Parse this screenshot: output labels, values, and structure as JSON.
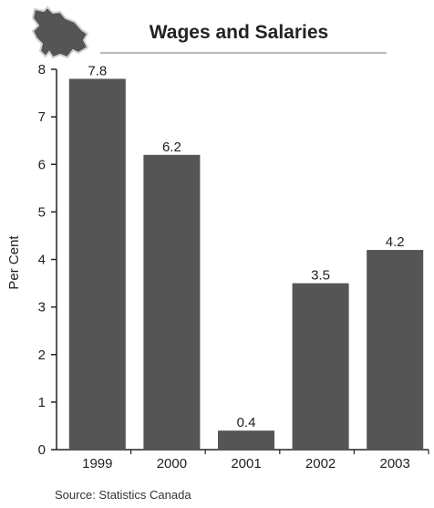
{
  "chart_data": {
    "type": "bar",
    "title": "Wages and Salaries",
    "xlabel": "",
    "ylabel": "Per Cent",
    "categories": [
      "1999",
      "2000",
      "2001",
      "2002",
      "2003"
    ],
    "values": [
      7.8,
      6.2,
      0.4,
      3.5,
      4.2
    ],
    "value_labels": [
      "7.8",
      "6.2",
      "0.4",
      "3.5",
      "4.2"
    ],
    "ylim": [
      0,
      8
    ],
    "yticks": [
      0,
      1,
      2,
      3,
      4,
      5,
      6,
      7,
      8
    ],
    "grid": false,
    "legend": "none",
    "bar_color": "#555555",
    "logo_icon": "new-brunswick-map-icon"
  },
  "source": "Source: Statistics Canada"
}
